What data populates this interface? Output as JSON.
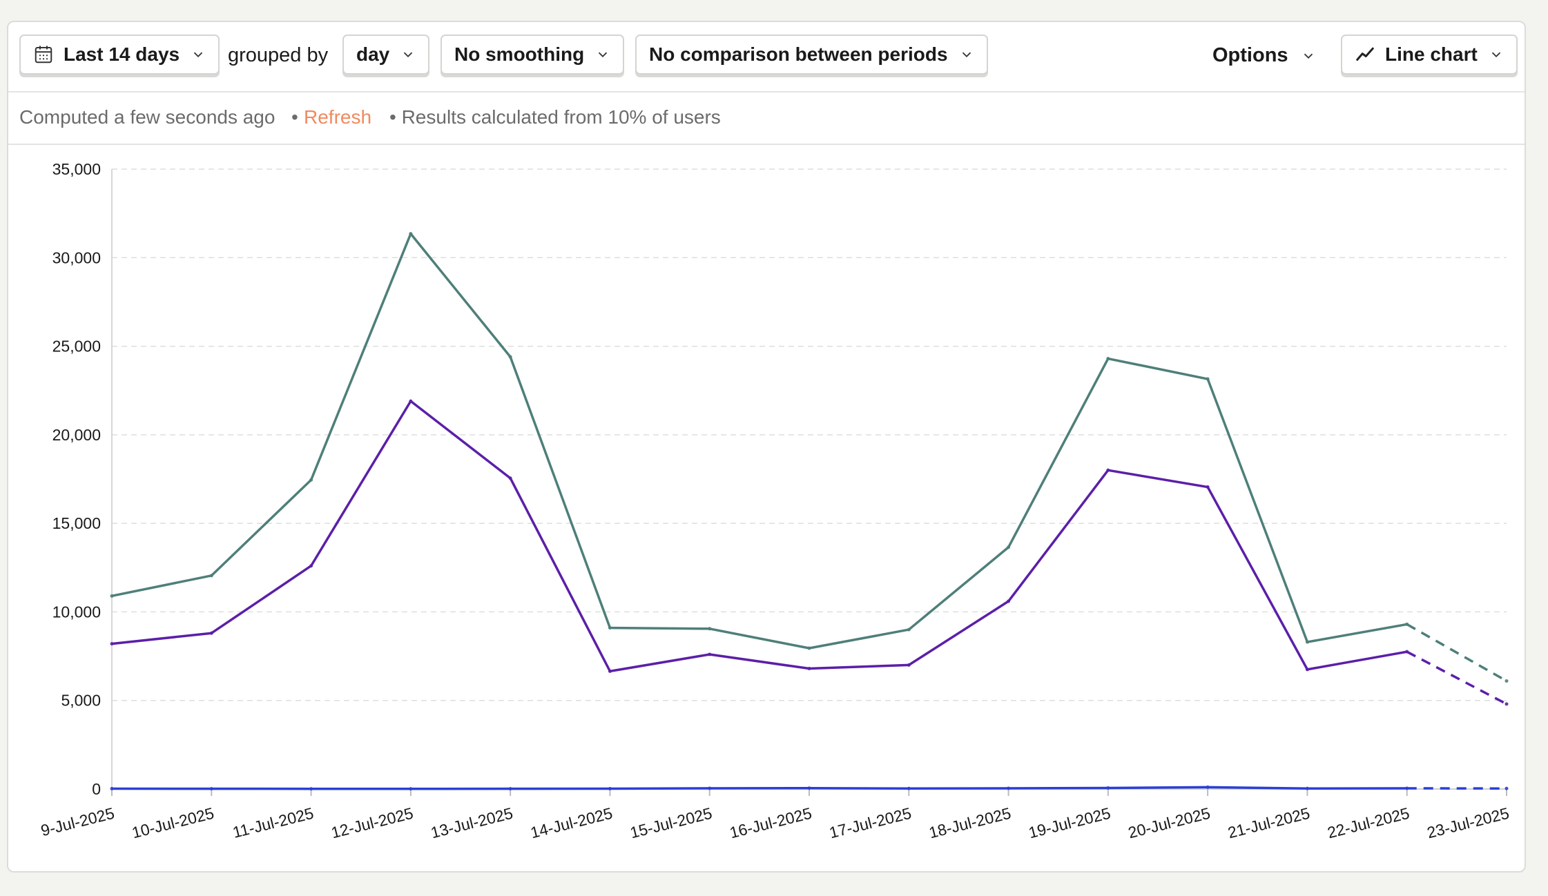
{
  "toolbar": {
    "date_range_label": "Last 14 days",
    "grouped_by_text": "grouped by",
    "interval_label": "day",
    "smoothing_label": "No smoothing",
    "compare_label": "No comparison between periods",
    "options_label": "Options",
    "chart_type_label": "Line chart"
  },
  "status": {
    "computed_text": "Computed a few seconds ago",
    "separator": "•",
    "refresh_label": "Refresh",
    "sampling_text": "• Results calculated from 10% of users"
  },
  "colors": {
    "series_a": "#4e7f79",
    "series_b": "#5b1fa8",
    "series_c": "#2b3fd6",
    "grid": "#dedede",
    "accent": "#f08a5d"
  },
  "chart_data": {
    "type": "line",
    "x": [
      "9-Jul-2025",
      "10-Jul-2025",
      "11-Jul-2025",
      "12-Jul-2025",
      "13-Jul-2025",
      "14-Jul-2025",
      "15-Jul-2025",
      "16-Jul-2025",
      "17-Jul-2025",
      "18-Jul-2025",
      "19-Jul-2025",
      "20-Jul-2025",
      "21-Jul-2025",
      "22-Jul-2025",
      "23-Jul-2025"
    ],
    "y_ticks": [
      "0",
      "5,000",
      "10,000",
      "15,000",
      "20,000",
      "25,000",
      "30,000",
      "35,000"
    ],
    "ylim": [
      0,
      35000
    ],
    "grid": true,
    "incomplete_last_point": true,
    "series": [
      {
        "color": "#4e7f79",
        "values": [
          10900,
          12050,
          17450,
          31350,
          24400,
          9100,
          9050,
          7950,
          9000,
          13650,
          24300,
          23150,
          8300,
          9300,
          6100
        ]
      },
      {
        "color": "#5b1fa8",
        "values": [
          8200,
          8800,
          12600,
          21900,
          17550,
          6650,
          7600,
          6800,
          7000,
          10600,
          18000,
          17050,
          6750,
          7750,
          4800
        ]
      },
      {
        "color": "#2b3fd6",
        "values": [
          20,
          15,
          10,
          10,
          15,
          20,
          40,
          50,
          30,
          40,
          60,
          100,
          30,
          40,
          30
        ]
      }
    ]
  }
}
